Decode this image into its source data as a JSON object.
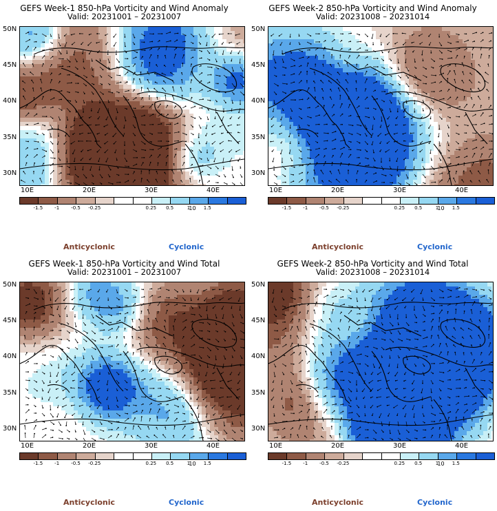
{
  "panels": [
    {
      "title": "GEFS Week-1 850-hPa Vorticity and Wind Anomaly",
      "valid": "Valid: 20231001 – 20231007",
      "seed": 11,
      "bias": 0.0
    },
    {
      "title": "GEFS Week-2 850-hPa Vorticity and Wind Anomaly",
      "valid": "Valid: 20231008 – 20231014",
      "seed": 27,
      "bias": -0.3
    },
    {
      "title": "GEFS Week-1 850-hPa Vorticity and Wind Total",
      "valid": "Valid: 20231001 – 20231007",
      "seed": 43,
      "bias": 0.1
    },
    {
      "title": "GEFS Week-2 850-hPa Vorticity and Wind Total",
      "valid": "Valid: 20231008 – 20231014",
      "seed": 59,
      "bias": -0.2
    }
  ],
  "lat_ticks": [
    "30N",
    "35N",
    "40N",
    "45N",
    "50N"
  ],
  "lon_ticks": [
    "10E",
    "20E",
    "30E",
    "40E"
  ],
  "colorbar": {
    "labels": [
      "-1.5",
      "-1",
      "-0.5",
      "-0.25",
      "0.25",
      "0.5",
      "1",
      "1.5"
    ],
    "units_mark": "10",
    "colors": [
      "#6b3a2a",
      "#8e5a46",
      "#b08472",
      "#cdab9b",
      "#e6d4cb",
      "#ffffff",
      "#ffffff",
      "#c9f0f7",
      "#96d8f2",
      "#5aa8ea",
      "#2a78e0",
      "#1a5fd6"
    ]
  },
  "legend": {
    "anticyclonic": "Anticyclonic",
    "cyclonic": "Cyclonic"
  }
}
